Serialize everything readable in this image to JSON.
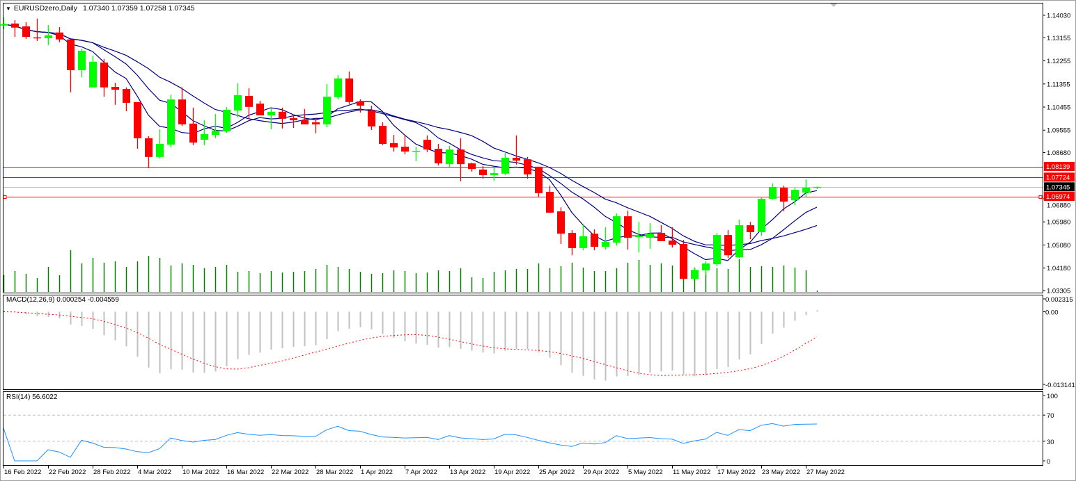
{
  "header": {
    "symbol": "EURUSDzero,Daily",
    "ohlc": "1.07340 1.07359 1.07258 1.07345"
  },
  "chart_data": {
    "type": "candlestick",
    "title": "EURUSDzero,Daily",
    "candles": [
      [
        1.1363,
        1.1395,
        1.1349,
        1.1368
      ],
      [
        1.1371,
        1.1384,
        1.1319,
        1.1355
      ],
      [
        1.136,
        1.1376,
        1.1311,
        1.1319
      ],
      [
        1.1317,
        1.139,
        1.1303,
        1.1314
      ],
      [
        1.1314,
        1.1365,
        1.1287,
        1.1325
      ],
      [
        1.1336,
        1.1357,
        1.1298,
        1.1309
      ],
      [
        1.1309,
        1.1309,
        1.1103,
        1.1189
      ],
      [
        1.1189,
        1.1273,
        1.1162,
        1.1265
      ],
      [
        1.1122,
        1.1246,
        1.1122,
        1.1222
      ],
      [
        1.1219,
        1.1233,
        1.1086,
        1.1122
      ],
      [
        1.1124,
        1.114,
        1.1054,
        1.1113
      ],
      [
        1.1116,
        1.1122,
        1.1029,
        1.1062
      ],
      [
        1.1065,
        1.1065,
        1.0883,
        1.0924
      ],
      [
        1.0924,
        1.0932,
        1.0807,
        1.0851
      ],
      [
        1.0851,
        1.0959,
        1.0845,
        1.0902
      ],
      [
        1.0899,
        1.1094,
        1.0888,
        1.1075
      ],
      [
        1.1075,
        1.1122,
        1.0972,
        1.0978
      ],
      [
        1.0981,
        1.1043,
        1.0897,
        1.0907
      ],
      [
        1.0918,
        1.0994,
        1.0897,
        1.094
      ],
      [
        1.0937,
        1.1019,
        1.0924,
        1.0954
      ],
      [
        1.0951,
        1.1046,
        1.0945,
        1.1035
      ],
      [
        1.1032,
        1.1138,
        1.1005,
        1.1092
      ],
      [
        1.1089,
        1.1119,
        1.1,
        1.1046
      ],
      [
        1.1059,
        1.107,
        1.1013,
        1.1013
      ],
      [
        1.1013,
        1.1046,
        1.0959,
        1.1027
      ],
      [
        1.1027,
        1.1043,
        1.0962,
        1.1
      ],
      [
        1.1002,
        1.1013,
        1.0964,
        1.0994
      ],
      [
        1.0994,
        1.1038,
        1.0978,
        1.0978
      ],
      [
        1.0986,
        1.1002,
        1.0943,
        1.0978
      ],
      [
        1.0978,
        1.1135,
        1.0967,
        1.1086
      ],
      [
        1.1084,
        1.117,
        1.1075,
        1.1157
      ],
      [
        1.1157,
        1.1184,
        1.1057,
        1.1065
      ],
      [
        1.1067,
        1.1076,
        1.1024,
        1.1051
      ],
      [
        1.1032,
        1.1051,
        1.0956,
        1.097
      ],
      [
        1.0972,
        1.0986,
        1.0897,
        1.0902
      ],
      [
        1.0905,
        1.0937,
        1.0872,
        1.0888
      ],
      [
        1.0891,
        1.0937,
        1.0861,
        1.0872
      ],
      [
        1.0872,
        1.0891,
        1.0834,
        1.0875
      ],
      [
        1.0918,
        1.0935,
        1.087,
        1.088
      ],
      [
        1.0883,
        1.0902,
        1.0818,
        1.0826
      ],
      [
        1.0823,
        1.0894,
        1.0807,
        1.088
      ],
      [
        1.088,
        1.0924,
        1.0756,
        1.0823
      ],
      [
        1.0826,
        1.0829,
        1.0794,
        1.0804
      ],
      [
        1.0802,
        1.0815,
        1.0766,
        1.078
      ],
      [
        1.078,
        1.081,
        1.0758,
        1.0788
      ],
      [
        1.0786,
        1.0867,
        1.078,
        1.0848
      ],
      [
        1.0848,
        1.0935,
        1.0821,
        1.0837
      ],
      [
        1.0842,
        1.0851,
        1.0766,
        1.0783
      ],
      [
        1.0813,
        1.0813,
        1.0696,
        1.071
      ],
      [
        1.0715,
        1.0739,
        1.0634,
        1.0634
      ],
      [
        1.0639,
        1.0655,
        1.0512,
        1.0552
      ],
      [
        1.0555,
        1.0566,
        1.0468,
        1.0496
      ],
      [
        1.0496,
        1.059,
        1.0487,
        1.0542
      ],
      [
        1.0552,
        1.0569,
        1.0487,
        1.0501
      ],
      [
        1.0501,
        1.0577,
        1.049,
        1.052
      ],
      [
        1.0517,
        1.0631,
        1.0506,
        1.062
      ],
      [
        1.062,
        1.0642,
        1.049,
        1.0536
      ],
      [
        1.0539,
        1.0598,
        1.0479,
        1.0544
      ],
      [
        1.0536,
        1.0593,
        1.0493,
        1.0552
      ],
      [
        1.0555,
        1.0585,
        1.0523,
        1.0523
      ],
      [
        1.0525,
        1.0577,
        1.0498,
        1.0509
      ],
      [
        1.0512,
        1.0528,
        1.0376,
        1.0376
      ],
      [
        1.0376,
        1.0417,
        1.0376,
        1.0411
      ],
      [
        1.0409,
        1.0444,
        1.039,
        1.0436
      ],
      [
        1.0433,
        1.0555,
        1.0425,
        1.0547
      ],
      [
        1.0547,
        1.0566,
        1.0458,
        1.0468
      ],
      [
        1.046,
        1.0607,
        1.0458,
        1.0585
      ],
      [
        1.0585,
        1.0598,
        1.0531,
        1.0558
      ],
      [
        1.0558,
        1.0696,
        1.0544,
        1.0688
      ],
      [
        1.0688,
        1.0748,
        1.0685,
        1.0734
      ],
      [
        1.0731,
        1.0739,
        1.0639,
        1.0677
      ],
      [
        1.0682,
        1.0731,
        1.0663,
        1.0723
      ],
      [
        1.0712,
        1.0764,
        1.0696,
        1.0731
      ],
      [
        1.0734,
        1.07359,
        1.07258,
        1.07345
      ]
    ],
    "volumes": [
      24,
      30,
      26,
      20,
      36,
      24,
      60,
      41,
      49,
      42,
      44,
      36,
      44,
      52,
      49,
      38,
      41,
      39,
      34,
      36,
      39,
      29,
      30,
      27,
      30,
      28,
      29,
      30,
      33,
      39,
      36,
      33,
      29,
      26,
      27,
      31,
      30,
      27,
      28,
      31,
      30,
      34,
      21,
      20,
      29,
      31,
      33,
      33,
      41,
      34,
      37,
      42,
      35,
      30,
      30,
      34,
      42,
      46,
      39,
      41,
      38,
      45,
      35,
      29,
      34,
      33,
      47,
      36,
      37,
      36,
      38,
      35,
      31,
      2
    ],
    "price_range": [
      1.03305,
      1.1403
    ],
    "price_ticks": [
      "1.14030",
      "1.13155",
      "1.12255",
      "1.11355",
      "1.10455",
      "1.09555",
      "1.08680",
      "1.06880",
      "1.05980",
      "1.05080",
      "1.04180",
      "1.03305"
    ],
    "x_labels": [
      {
        "bar": 0,
        "text": "16 Feb 2022"
      },
      {
        "bar": 4,
        "text": "22 Feb 2022"
      },
      {
        "bar": 8,
        "text": "28 Feb 2022"
      },
      {
        "bar": 12,
        "text": "4 Mar 2022"
      },
      {
        "bar": 16,
        "text": "10 Mar 2022"
      },
      {
        "bar": 20,
        "text": "16 Mar 2022"
      },
      {
        "bar": 24,
        "text": "22 Mar 2022"
      },
      {
        "bar": 28,
        "text": "28 Mar 2022"
      },
      {
        "bar": 32,
        "text": "1 Apr 2022"
      },
      {
        "bar": 36,
        "text": "7 Apr 2022"
      },
      {
        "bar": 40,
        "text": "13 Apr 2022"
      },
      {
        "bar": 44,
        "text": "19 Apr 2022"
      },
      {
        "bar": 48,
        "text": "25 Apr 2022"
      },
      {
        "bar": 52,
        "text": "29 Apr 2022"
      },
      {
        "bar": 56,
        "text": "5 May 2022"
      },
      {
        "bar": 60,
        "text": "11 May 2022"
      },
      {
        "bar": 64,
        "text": "17 May 2022"
      },
      {
        "bar": 68,
        "text": "23 May 2022"
      },
      {
        "bar": 72,
        "text": "27 May 2022"
      }
    ],
    "levels": [
      {
        "price": 1.08139,
        "label": "1.08139",
        "color": "#ff0000"
      },
      {
        "price": 1.07724,
        "label": "1.07724",
        "color": "#ff0000"
      },
      {
        "price": 1.07345,
        "label": "1.07345",
        "color": "#000000",
        "bid": true
      },
      {
        "price": 1.06974,
        "label": "1.06974",
        "color": "#ff0000",
        "handles": true
      }
    ],
    "colors": {
      "bull": "#00ff00",
      "bear": "#ff0000",
      "ma": "#000080",
      "volume": "#008000",
      "rsi": "#1e90ff",
      "macd_hist": "#c0c0c0",
      "macd_signal": "#ff0000"
    }
  },
  "macd": {
    "label": "MACD(12,26,9) 0.000254 -0.004559",
    "range": [
      -0.013141,
      0.002315
    ],
    "ticks": [
      "0.002315",
      "0.00",
      "-0.013141"
    ]
  },
  "rsi": {
    "label": "RSI(14) 56.6022",
    "ticks": [
      "100",
      "70",
      "30",
      "0"
    ],
    "levels": [
      70,
      30
    ]
  }
}
